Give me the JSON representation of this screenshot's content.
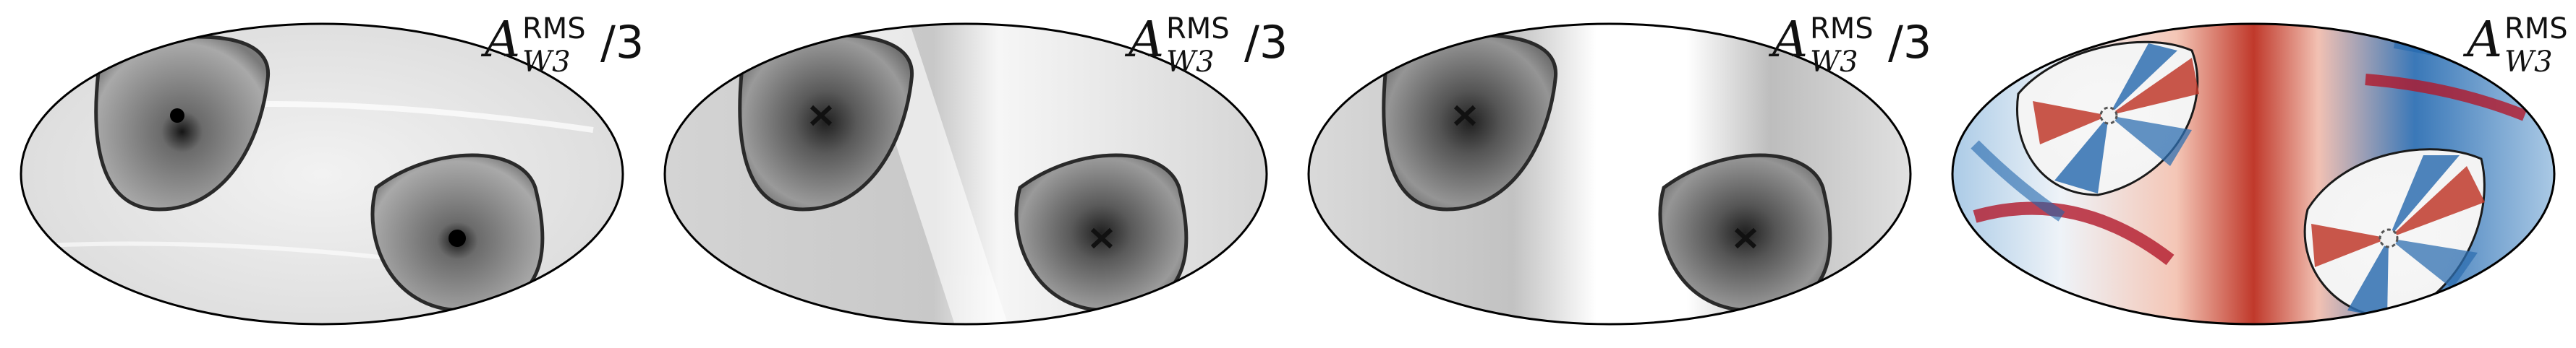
{
  "figure": {
    "panels": [
      {
        "label_base": "A",
        "label_sup": "RMS",
        "label_sub": "W3",
        "label_suffix": "/3",
        "colormap": "grayscale"
      },
      {
        "label_base": "A",
        "label_sup": "RMS",
        "label_sub": "W3",
        "label_suffix": "/3",
        "colormap": "grayscale"
      },
      {
        "label_base": "A",
        "label_sup": "RMS",
        "label_sub": "W3",
        "label_suffix": "/3",
        "colormap": "grayscale"
      },
      {
        "label_base": "A",
        "label_sup": "RMS",
        "label_sub": "W3",
        "label_suffix": "",
        "colormap": "diverging-red-blue"
      }
    ],
    "colors": {
      "outline": "#000000",
      "gray_light": "#eeeeee",
      "gray_mid": "#9a9a9a",
      "gray_dark": "#2a2a2a",
      "red": "#c0392b",
      "blue": "#2f6fb0",
      "white": "#ffffff"
    }
  }
}
